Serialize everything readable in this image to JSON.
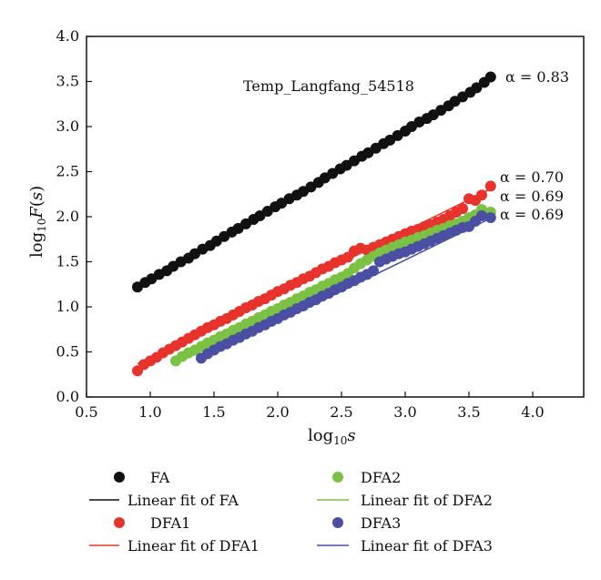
{
  "chart_data": {
    "type": "scatter",
    "title": "Temp_Langfang_54518",
    "xlabel": "log10s",
    "ylabel": "log10F(s)",
    "xlim": [
      0.5,
      4.4
    ],
    "ylim": [
      0.0,
      4.0
    ],
    "x_ticks": [
      "0.5",
      "1.0",
      "1.5",
      "2.0",
      "2.5",
      "3.0",
      "3.5",
      "4.0"
    ],
    "y_ticks": [
      "0.0",
      "0.5",
      "1.0",
      "1.5",
      "2.0",
      "2.5",
      "3.0",
      "3.5",
      "4.0"
    ],
    "grid": false,
    "legend_position": "bottom",
    "series": [
      {
        "name": "FA",
        "color": "#111111",
        "x_start": 0.9,
        "x_end": 3.67,
        "count": 50,
        "fit_name": "Linear fit of FA",
        "fit": {
          "slope": 0.83,
          "intercept": 0.47
        },
        "alpha_label": "α = 0.83",
        "points": [
          [
            0.9,
            1.22
          ],
          [
            0.96,
            1.27
          ],
          [
            1.01,
            1.31
          ],
          [
            1.07,
            1.36
          ],
          [
            1.13,
            1.4
          ],
          [
            1.18,
            1.45
          ],
          [
            1.24,
            1.5
          ],
          [
            1.3,
            1.54
          ],
          [
            1.35,
            1.59
          ],
          [
            1.41,
            1.64
          ],
          [
            1.47,
            1.68
          ],
          [
            1.52,
            1.73
          ],
          [
            1.58,
            1.78
          ],
          [
            1.64,
            1.83
          ],
          [
            1.69,
            1.87
          ],
          [
            1.75,
            1.92
          ],
          [
            1.81,
            1.97
          ],
          [
            1.86,
            2.01
          ],
          [
            1.92,
            2.06
          ],
          [
            1.98,
            2.11
          ],
          [
            2.03,
            2.15
          ],
          [
            2.09,
            2.2
          ],
          [
            2.15,
            2.24
          ],
          [
            2.2,
            2.28
          ],
          [
            2.26,
            2.33
          ],
          [
            2.32,
            2.38
          ],
          [
            2.37,
            2.43
          ],
          [
            2.43,
            2.48
          ],
          [
            2.49,
            2.53
          ],
          [
            2.54,
            2.57
          ],
          [
            2.6,
            2.62
          ],
          [
            2.66,
            2.67
          ],
          [
            2.71,
            2.71
          ],
          [
            2.77,
            2.76
          ],
          [
            2.83,
            2.81
          ],
          [
            2.88,
            2.85
          ],
          [
            2.94,
            2.9
          ],
          [
            3.0,
            2.95
          ],
          [
            3.05,
            3.0
          ],
          [
            3.11,
            3.05
          ],
          [
            3.17,
            3.09
          ],
          [
            3.22,
            3.13
          ],
          [
            3.28,
            3.18
          ],
          [
            3.34,
            3.23
          ],
          [
            3.39,
            3.28
          ],
          [
            3.45,
            3.33
          ],
          [
            3.51,
            3.38
          ],
          [
            3.56,
            3.43
          ],
          [
            3.62,
            3.49
          ],
          [
            3.67,
            3.55
          ]
        ]
      },
      {
        "name": "DFA1",
        "color": "#e8332c",
        "fit_name": "Linear fit of DFA1",
        "fit": {
          "slope": 0.7,
          "intercept": -0.26
        },
        "alpha_label": "α = 0.70",
        "points": [
          [
            0.9,
            0.29
          ],
          [
            0.95,
            0.36
          ],
          [
            1.0,
            0.4
          ],
          [
            1.05,
            0.44
          ],
          [
            1.1,
            0.49
          ],
          [
            1.15,
            0.53
          ],
          [
            1.2,
            0.57
          ],
          [
            1.25,
            0.61
          ],
          [
            1.3,
            0.65
          ],
          [
            1.35,
            0.69
          ],
          [
            1.4,
            0.73
          ],
          [
            1.45,
            0.77
          ],
          [
            1.5,
            0.8
          ],
          [
            1.55,
            0.84
          ],
          [
            1.6,
            0.87
          ],
          [
            1.65,
            0.91
          ],
          [
            1.7,
            0.95
          ],
          [
            1.75,
            0.99
          ],
          [
            1.8,
            1.02
          ],
          [
            1.85,
            1.06
          ],
          [
            1.9,
            1.09
          ],
          [
            1.95,
            1.13
          ],
          [
            2.0,
            1.17
          ],
          [
            2.05,
            1.2
          ],
          [
            2.1,
            1.24
          ],
          [
            2.15,
            1.27
          ],
          [
            2.2,
            1.31
          ],
          [
            2.25,
            1.34
          ],
          [
            2.3,
            1.38
          ],
          [
            2.35,
            1.42
          ],
          [
            2.4,
            1.45
          ],
          [
            2.45,
            1.49
          ],
          [
            2.5,
            1.52
          ],
          [
            2.55,
            1.55
          ],
          [
            2.6,
            1.62
          ],
          [
            2.65,
            1.65
          ],
          [
            2.7,
            1.63
          ],
          [
            2.75,
            1.66
          ],
          [
            2.8,
            1.69
          ],
          [
            2.85,
            1.72
          ],
          [
            2.9,
            1.75
          ],
          [
            2.95,
            1.78
          ],
          [
            3.0,
            1.81
          ],
          [
            3.05,
            1.84
          ],
          [
            3.1,
            1.86
          ],
          [
            3.15,
            1.89
          ],
          [
            3.2,
            1.91
          ],
          [
            3.25,
            1.94
          ],
          [
            3.3,
            1.97
          ],
          [
            3.35,
            2.01
          ],
          [
            3.4,
            2.05
          ],
          [
            3.45,
            2.09
          ],
          [
            3.5,
            2.2
          ],
          [
            3.55,
            2.18
          ],
          [
            3.6,
            2.24
          ],
          [
            3.67,
            2.34
          ]
        ]
      },
      {
        "name": "DFA2",
        "color": "#7bc143",
        "fit_name": "Linear fit of DFA2",
        "fit": {
          "slope": 0.69,
          "intercept": -0.46
        },
        "alpha_label": "α = 0.69",
        "points": [
          [
            1.2,
            0.4
          ],
          [
            1.25,
            0.45
          ],
          [
            1.3,
            0.49
          ],
          [
            1.35,
            0.52
          ],
          [
            1.4,
            0.56
          ],
          [
            1.45,
            0.6
          ],
          [
            1.5,
            0.63
          ],
          [
            1.55,
            0.67
          ],
          [
            1.6,
            0.7
          ],
          [
            1.65,
            0.74
          ],
          [
            1.7,
            0.77
          ],
          [
            1.75,
            0.81
          ],
          [
            1.8,
            0.84
          ],
          [
            1.85,
            0.88
          ],
          [
            1.9,
            0.91
          ],
          [
            1.95,
            0.95
          ],
          [
            2.0,
            0.98
          ],
          [
            2.05,
            1.02
          ],
          [
            2.1,
            1.05
          ],
          [
            2.15,
            1.09
          ],
          [
            2.2,
            1.12
          ],
          [
            2.25,
            1.16
          ],
          [
            2.3,
            1.19
          ],
          [
            2.35,
            1.23
          ],
          [
            2.4,
            1.26
          ],
          [
            2.45,
            1.3
          ],
          [
            2.5,
            1.33
          ],
          [
            2.55,
            1.37
          ],
          [
            2.6,
            1.43
          ],
          [
            2.65,
            1.48
          ],
          [
            2.7,
            1.52
          ],
          [
            2.75,
            1.56
          ],
          [
            2.8,
            1.6
          ],
          [
            2.85,
            1.63
          ],
          [
            2.9,
            1.66
          ],
          [
            2.95,
            1.69
          ],
          [
            3.0,
            1.72
          ],
          [
            3.05,
            1.74
          ],
          [
            3.1,
            1.77
          ],
          [
            3.15,
            1.79
          ],
          [
            3.2,
            1.82
          ],
          [
            3.25,
            1.85
          ],
          [
            3.3,
            1.87
          ],
          [
            3.35,
            1.9
          ],
          [
            3.4,
            1.92
          ],
          [
            3.45,
            1.95
          ],
          [
            3.5,
            1.99
          ],
          [
            3.55,
            2.02
          ],
          [
            3.6,
            2.08
          ],
          [
            3.67,
            2.05
          ]
        ]
      },
      {
        "name": "DFA3",
        "color": "#4a4fa3",
        "fit_name": "Linear fit of DFA3",
        "fit": {
          "slope": 0.69,
          "intercept": -0.55
        },
        "alpha_label": "α = 0.69",
        "points": [
          [
            1.4,
            0.43
          ],
          [
            1.45,
            0.48
          ],
          [
            1.5,
            0.52
          ],
          [
            1.55,
            0.56
          ],
          [
            1.6,
            0.59
          ],
          [
            1.65,
            0.63
          ],
          [
            1.7,
            0.66
          ],
          [
            1.75,
            0.7
          ],
          [
            1.8,
            0.73
          ],
          [
            1.85,
            0.77
          ],
          [
            1.9,
            0.8
          ],
          [
            1.95,
            0.84
          ],
          [
            2.0,
            0.87
          ],
          [
            2.05,
            0.91
          ],
          [
            2.1,
            0.94
          ],
          [
            2.15,
            0.98
          ],
          [
            2.2,
            1.01
          ],
          [
            2.25,
            1.05
          ],
          [
            2.3,
            1.08
          ],
          [
            2.35,
            1.12
          ],
          [
            2.4,
            1.15
          ],
          [
            2.45,
            1.19
          ],
          [
            2.5,
            1.22
          ],
          [
            2.55,
            1.26
          ],
          [
            2.6,
            1.29
          ],
          [
            2.65,
            1.33
          ],
          [
            2.7,
            1.36
          ],
          [
            2.75,
            1.4
          ],
          [
            2.8,
            1.5
          ],
          [
            2.85,
            1.53
          ],
          [
            2.9,
            1.56
          ],
          [
            2.95,
            1.59
          ],
          [
            3.0,
            1.61
          ],
          [
            3.05,
            1.64
          ],
          [
            3.1,
            1.67
          ],
          [
            3.15,
            1.7
          ],
          [
            3.2,
            1.73
          ],
          [
            3.25,
            1.76
          ],
          [
            3.3,
            1.79
          ],
          [
            3.35,
            1.82
          ],
          [
            3.4,
            1.85
          ],
          [
            3.45,
            1.88
          ],
          [
            3.5,
            1.89
          ],
          [
            3.55,
            1.95
          ],
          [
            3.6,
            2.01
          ],
          [
            3.67,
            1.99
          ]
        ]
      }
    ]
  }
}
